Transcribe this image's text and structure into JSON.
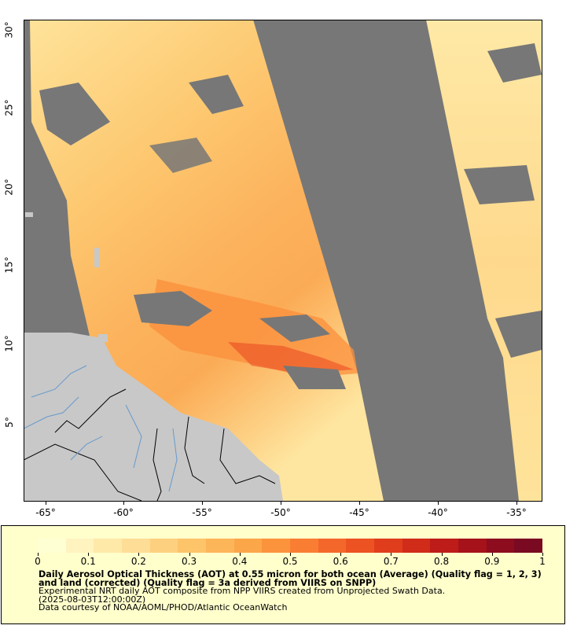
{
  "map": {
    "y_ticks": [
      "5°",
      "10°",
      "15°",
      "20°",
      "25°",
      "30°"
    ],
    "x_ticks": [
      "-65°",
      "-60°",
      "-55°",
      "-50°",
      "-45°",
      "-40°",
      "-35°"
    ],
    "colors": {
      "no_data": "#777777",
      "land": "#c8c8c8",
      "border": "#000000",
      "river": "#6699cc"
    }
  },
  "legend": {
    "colorbar_labels": [
      "0",
      "0.1",
      "0.2",
      "0.3",
      "0.4",
      "0.5",
      "0.6",
      "0.7",
      "0.8",
      "0.9",
      "1"
    ],
    "colorbar_colors": [
      "#ffffd4",
      "#fff3c0",
      "#ffe9a8",
      "#fedd96",
      "#fdd080",
      "#fdc46a",
      "#fdb55a",
      "#fca64a",
      "#fb933d",
      "#f97e33",
      "#f4672a",
      "#ec5222",
      "#e03d1d",
      "#d12b1a",
      "#bd1c18",
      "#a6121a",
      "#8d0c1e",
      "#790a22"
    ],
    "title": "Daily Aerosol Optical Thickness (AOT) at 0.55 micron for both ocean (Average) (Quality flag = 1, 2, 3) and land (corrected) (Quality flag = 3a derived from VIIRS on SNPP)",
    "line1": "Experimental NRT daily AOT composite from NPP VIIRS created from Unprojected Swath Data.",
    "line2": "(2025-08-03T12:00:00Z)",
    "line3": "Data courtesy of NOAA/AOML/PHOD/Atlantic OceanWatch"
  }
}
